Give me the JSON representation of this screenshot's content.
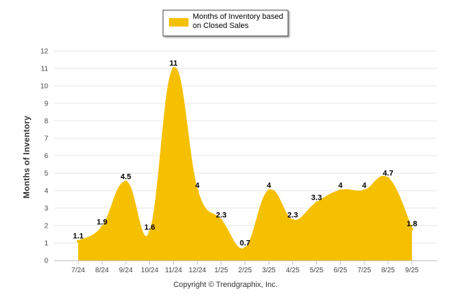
{
  "chart_data": {
    "type": "area",
    "title": "",
    "xlabel": "",
    "ylabel": "Months of Inventory",
    "categories": [
      "7/24",
      "8/24",
      "9/24",
      "10/24",
      "11/24",
      "12/24",
      "1/25",
      "2/25",
      "3/25",
      "4/25",
      "5/25",
      "6/25",
      "7/25",
      "8/25",
      "9/25"
    ],
    "series": [
      {
        "name": "Months of Inventory based on Closed Sales",
        "values": [
          1.1,
          1.9,
          4.5,
          1.6,
          11,
          4,
          2.3,
          0.7,
          4,
          2.3,
          3.3,
          4,
          4,
          4.7,
          1.8
        ],
        "labels": [
          "1.1",
          "1.9",
          "4.5",
          "1.6",
          "11",
          "4",
          "2.3",
          "0.7",
          "4",
          "2.3",
          "3.3",
          "4",
          "4",
          "4.7",
          "1.8"
        ],
        "color": "#f5c000"
      }
    ],
    "ylim": [
      0,
      12
    ],
    "yticks": [
      "0",
      "1",
      "2",
      "3",
      "4",
      "5",
      "6",
      "7",
      "8",
      "9",
      "10",
      "11",
      "12"
    ],
    "grid": true,
    "legend_position": "top-center",
    "footer": "Copyright © Trendgraphix, Inc."
  }
}
